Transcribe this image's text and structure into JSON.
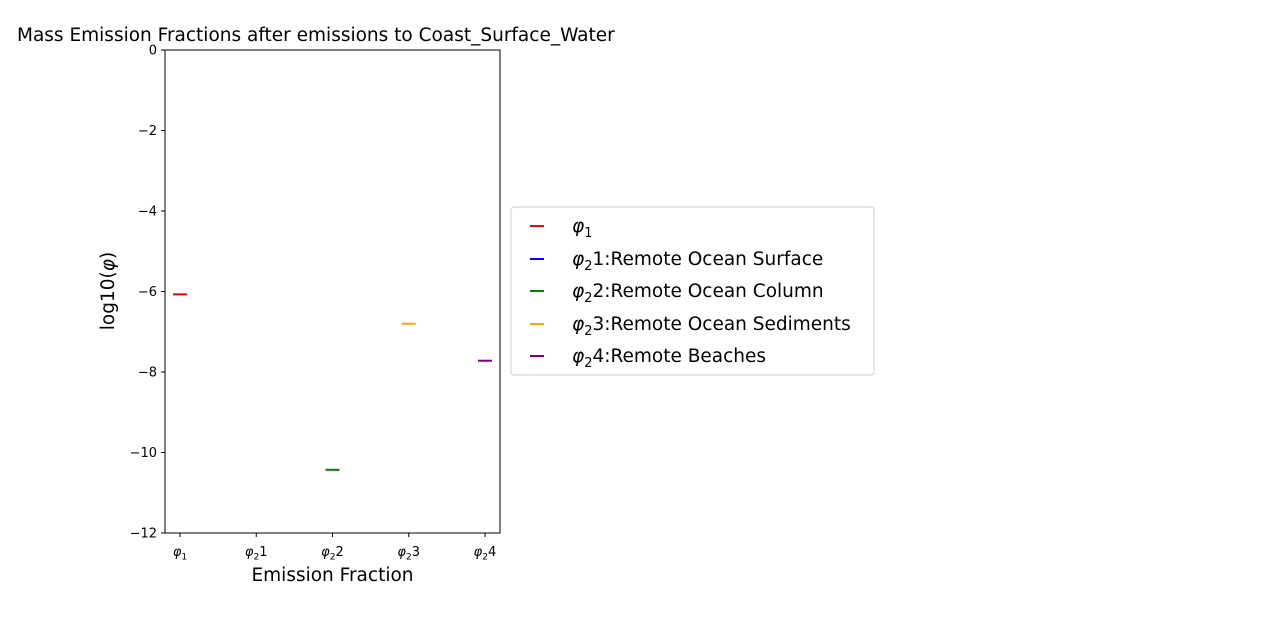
{
  "chart_data": {
    "type": "scatter",
    "title": "Mass Emission Fractions after emissions to Coast_Surface_Water",
    "xlabel": "Emission Fraction",
    "ylabel": {
      "prefix": "log10(",
      "symbol": "φ",
      "suffix": ")"
    },
    "ylim": [
      -12,
      0
    ],
    "yticks": [
      0,
      -2,
      -4,
      -6,
      -8,
      -10,
      -12
    ],
    "ytick_labels": [
      "0",
      "−2",
      "−4",
      "−6",
      "−8",
      "−10",
      "−12"
    ],
    "categories": [
      {
        "symbol": "φ",
        "sub": "1",
        "rest": ""
      },
      {
        "symbol": "φ",
        "sub": "2",
        "rest": "1"
      },
      {
        "symbol": "φ",
        "sub": "2",
        "rest": "2"
      },
      {
        "symbol": "φ",
        "sub": "2",
        "rest": "3"
      },
      {
        "symbol": "φ",
        "sub": "2",
        "rest": "4"
      }
    ],
    "series": [
      {
        "name": {
          "symbol": "φ",
          "sub": "1",
          "rest": ""
        },
        "color": "#ff0000",
        "x_index": 0,
        "value": -6.07
      },
      {
        "name": {
          "symbol": "φ",
          "sub": "2",
          "rest": "1:Remote Ocean Surface"
        },
        "color": "#0000ff",
        "x_index": 1,
        "value": null
      },
      {
        "name": {
          "symbol": "φ",
          "sub": "2",
          "rest": "2:Remote Ocean Column"
        },
        "color": "#008000",
        "x_index": 2,
        "value": -10.43
      },
      {
        "name": {
          "symbol": "φ",
          "sub": "2",
          "rest": "3:Remote Ocean Sediments"
        },
        "color": "#ffa500",
        "x_index": 3,
        "value": -6.8
      },
      {
        "name": {
          "symbol": "φ",
          "sub": "2",
          "rest": "4:Remote Beaches"
        },
        "color": "#800080",
        "x_index": 4,
        "value": -7.72
      }
    ],
    "grid": false,
    "legend_position": "right"
  }
}
